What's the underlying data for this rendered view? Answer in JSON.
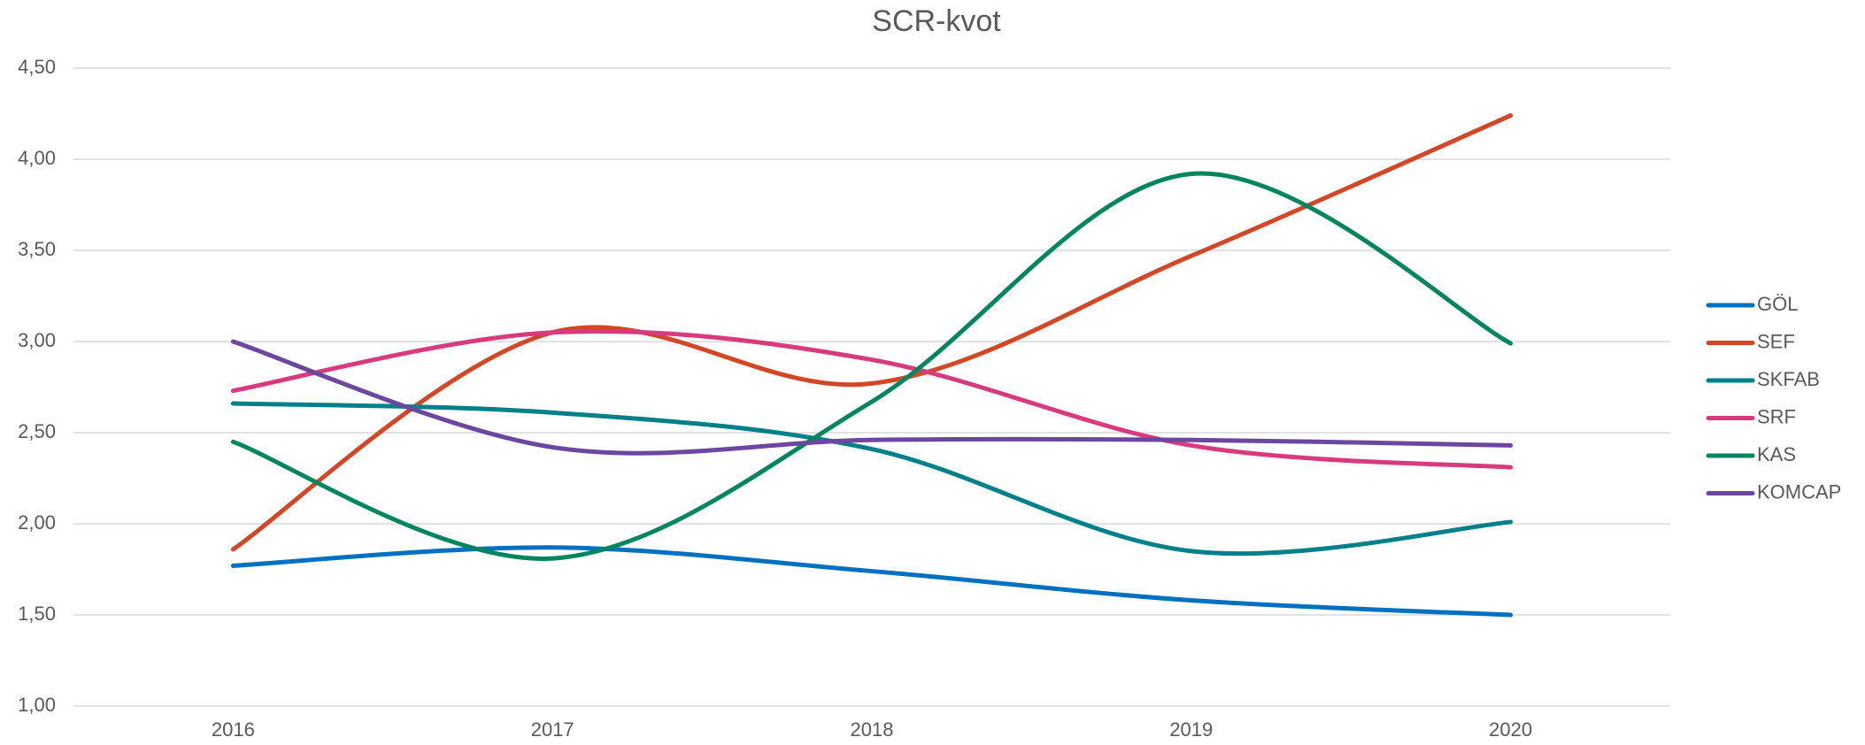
{
  "chart_data": {
    "type": "line",
    "title": "SCR-kvot",
    "categories": [
      "2016",
      "2017",
      "2018",
      "2019",
      "2020"
    ],
    "series": [
      {
        "name": "GÖL",
        "color": "#0070c0",
        "values": [
          1.77,
          1.87,
          1.74,
          1.58,
          1.5
        ]
      },
      {
        "name": "SEF",
        "color": "#d24726",
        "values": [
          1.86,
          3.05,
          2.77,
          3.47,
          4.24
        ]
      },
      {
        "name": "SKFAB",
        "color": "#00818a",
        "values": [
          2.66,
          2.61,
          2.41,
          1.85,
          2.01
        ]
      },
      {
        "name": "SRF",
        "color": "#d83b7d",
        "values": [
          2.73,
          3.05,
          2.9,
          2.43,
          2.31
        ]
      },
      {
        "name": "KAS",
        "color": "#00855f",
        "values": [
          2.45,
          1.81,
          2.67,
          3.92,
          2.99
        ]
      },
      {
        "name": "KOMCAP",
        "color": "#6b47a0",
        "values": [
          3.0,
          2.42,
          2.46,
          2.46,
          2.43
        ]
      }
    ],
    "ylim": [
      1,
      4.5
    ],
    "yticks": [
      {
        "value": 1,
        "label": "1,00"
      },
      {
        "value": 1.5,
        "label": "1,50"
      },
      {
        "value": 2,
        "label": "2,00"
      },
      {
        "value": 2.5,
        "label": "2,50"
      },
      {
        "value": 3,
        "label": "3,00"
      },
      {
        "value": 3.5,
        "label": "3,50"
      },
      {
        "value": 4,
        "label": "4,00"
      },
      {
        "value": 4.5,
        "label": "4,50"
      }
    ],
    "grid": true,
    "smooth": true,
    "legend": "right"
  }
}
